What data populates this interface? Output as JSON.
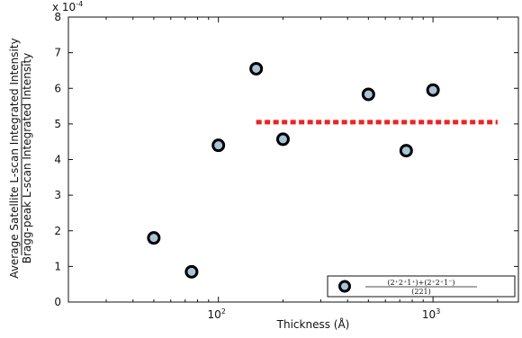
{
  "chart_data": {
    "type": "scatter",
    "xlabel": "Thickness (Å)",
    "ylabel_top": "Average Satellite L-scan Integrated Intensity",
    "ylabel_bottom": "Bragg-peak L-scan Integrated Intensity",
    "x_scale": "log",
    "xlim": [
      20,
      2500
    ],
    "ylim": [
      0,
      8
    ],
    "y_multiplier": "x 10",
    "y_multiplier_exp": "-4",
    "y_ticks": [
      0,
      1,
      2,
      3,
      4,
      5,
      6,
      7,
      8
    ],
    "y_tick_labels": [
      "0",
      "1",
      "2",
      "3",
      "4",
      "5",
      "6",
      "7",
      "8"
    ],
    "x_ticks": [
      100,
      1000
    ],
    "x_tick_base": "10",
    "x_tick_exps": [
      "2",
      "3"
    ],
    "series": [
      {
        "name": "(2⁺2⁺1⁺)+(2⁺2⁺1⁻) / (221)",
        "color": "#a9c4d6",
        "edge_color": "#000000",
        "points": [
          {
            "x": 50,
            "y": 1.8
          },
          {
            "x": 75,
            "y": 0.85
          },
          {
            "x": 100,
            "y": 4.4
          },
          {
            "x": 150,
            "y": 6.55
          },
          {
            "x": 200,
            "y": 4.57
          },
          {
            "x": 500,
            "y": 5.83
          },
          {
            "x": 750,
            "y": 4.25
          },
          {
            "x": 1000,
            "y": 5.95
          }
        ]
      }
    ],
    "reference_line": {
      "x_start": 150,
      "x_end": 2000,
      "y": 5.05,
      "color": "#ee2222",
      "style": "dotted"
    },
    "legend": {
      "numerator": "(2⁺2⁺1⁺)+(2⁺2⁺1⁻)",
      "denominator": "(221)",
      "placement": "lower-right"
    },
    "grid": false
  }
}
